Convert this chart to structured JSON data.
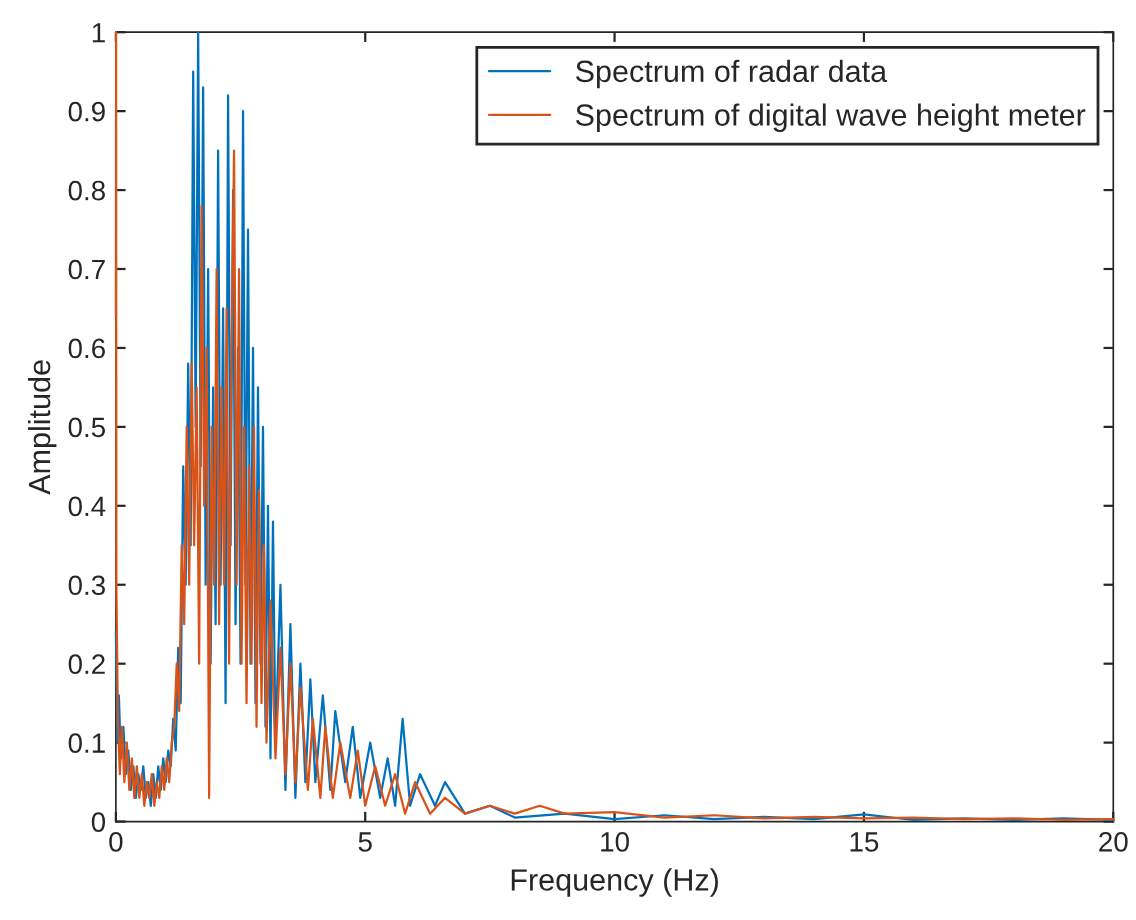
{
  "chart_data": {
    "type": "line",
    "xlabel": "Frequency (Hz)",
    "ylabel": "Amplitude",
    "xlim": [
      0,
      20
    ],
    "ylim": [
      0,
      1
    ],
    "xticks": [
      0,
      5,
      10,
      15,
      20
    ],
    "yticks": [
      0,
      0.1,
      0.2,
      0.3,
      0.4,
      0.5,
      0.6,
      0.7,
      0.8,
      0.9,
      1
    ],
    "grid": false,
    "legend": "top right",
    "series": [
      {
        "name": "Spectrum of radar data",
        "color": "#0072bd",
        "x": [
          0,
          0.03,
          0.06,
          0.1,
          0.15,
          0.2,
          0.25,
          0.3,
          0.35,
          0.4,
          0.45,
          0.5,
          0.55,
          0.6,
          0.65,
          0.7,
          0.75,
          0.8,
          0.85,
          0.9,
          0.95,
          1.0,
          1.05,
          1.1,
          1.15,
          1.2,
          1.25,
          1.3,
          1.35,
          1.4,
          1.45,
          1.5,
          1.55,
          1.6,
          1.65,
          1.7,
          1.75,
          1.8,
          1.85,
          1.9,
          1.95,
          2.0,
          2.05,
          2.1,
          2.15,
          2.2,
          2.25,
          2.3,
          2.35,
          2.4,
          2.45,
          2.5,
          2.55,
          2.6,
          2.65,
          2.7,
          2.75,
          2.8,
          2.85,
          2.9,
          2.95,
          3.0,
          3.05,
          3.1,
          3.15,
          3.2,
          3.3,
          3.4,
          3.5,
          3.6,
          3.7,
          3.8,
          3.9,
          4.0,
          4.15,
          4.3,
          4.4,
          4.6,
          4.75,
          4.9,
          5.1,
          5.3,
          5.45,
          5.6,
          5.75,
          5.9,
          6.1,
          6.4,
          6.6,
          7.0,
          7.5,
          8.0,
          9,
          10,
          11,
          12,
          13,
          14,
          15,
          16,
          17,
          18,
          19,
          20
        ],
        "values": [
          0.24,
          0.1,
          0.16,
          0.08,
          0.12,
          0.06,
          0.09,
          0.04,
          0.07,
          0.03,
          0.06,
          0.04,
          0.07,
          0.03,
          0.05,
          0.02,
          0.06,
          0.03,
          0.07,
          0.04,
          0.08,
          0.05,
          0.09,
          0.07,
          0.13,
          0.09,
          0.22,
          0.15,
          0.45,
          0.3,
          0.58,
          0.35,
          0.95,
          0.5,
          1.0,
          0.45,
          0.93,
          0.3,
          0.7,
          0.2,
          0.55,
          0.25,
          0.85,
          0.3,
          0.65,
          0.15,
          0.92,
          0.35,
          0.8,
          0.25,
          0.6,
          0.2,
          0.9,
          0.3,
          0.75,
          0.2,
          0.6,
          0.15,
          0.55,
          0.2,
          0.5,
          0.12,
          0.4,
          0.08,
          0.38,
          0.1,
          0.3,
          0.04,
          0.25,
          0.03,
          0.2,
          0.05,
          0.18,
          0.05,
          0.16,
          0.04,
          0.14,
          0.05,
          0.12,
          0.03,
          0.1,
          0.03,
          0.08,
          0.02,
          0.13,
          0.02,
          0.06,
          0.02,
          0.05,
          0.01,
          0.02,
          0.005,
          0.01,
          0.003,
          0.008,
          0.003,
          0.006,
          0.003,
          0.009,
          0.002,
          0.004,
          0.002,
          0.004,
          0.002
        ]
      },
      {
        "name": "Spectrum of digital wave height meter",
        "color": "#d95319",
        "x": [
          0,
          0.005,
          0.01,
          0.04,
          0.08,
          0.12,
          0.17,
          0.22,
          0.27,
          0.32,
          0.37,
          0.42,
          0.47,
          0.52,
          0.57,
          0.62,
          0.67,
          0.72,
          0.77,
          0.82,
          0.87,
          0.92,
          0.97,
          1.02,
          1.07,
          1.12,
          1.17,
          1.22,
          1.27,
          1.32,
          1.37,
          1.42,
          1.47,
          1.52,
          1.57,
          1.62,
          1.67,
          1.72,
          1.77,
          1.82,
          1.87,
          1.92,
          1.97,
          2.02,
          2.07,
          2.12,
          2.17,
          2.22,
          2.27,
          2.32,
          2.37,
          2.42,
          2.47,
          2.52,
          2.57,
          2.62,
          2.67,
          2.72,
          2.77,
          2.82,
          2.87,
          2.92,
          2.97,
          3.02,
          3.1,
          3.2,
          3.3,
          3.4,
          3.5,
          3.6,
          3.7,
          3.85,
          3.95,
          4.1,
          4.2,
          4.35,
          4.5,
          4.7,
          4.85,
          5.0,
          5.2,
          5.4,
          5.6,
          5.8,
          6.0,
          6.3,
          6.6,
          7.0,
          7.5,
          8,
          8.5,
          9,
          10,
          11,
          12,
          13,
          14,
          15,
          16,
          17,
          18,
          19,
          20
        ],
        "values": [
          0.64,
          1.0,
          0.3,
          0.13,
          0.06,
          0.12,
          0.05,
          0.1,
          0.04,
          0.08,
          0.03,
          0.07,
          0.03,
          0.06,
          0.02,
          0.05,
          0.03,
          0.06,
          0.02,
          0.05,
          0.03,
          0.07,
          0.04,
          0.08,
          0.05,
          0.1,
          0.12,
          0.2,
          0.14,
          0.35,
          0.25,
          0.5,
          0.3,
          0.58,
          0.35,
          0.55,
          0.2,
          0.78,
          0.4,
          0.6,
          0.03,
          0.5,
          0.3,
          0.7,
          0.25,
          0.55,
          0.3,
          0.65,
          0.2,
          0.6,
          0.85,
          0.3,
          0.7,
          0.2,
          0.5,
          0.15,
          0.45,
          0.2,
          0.5,
          0.12,
          0.42,
          0.15,
          0.35,
          0.1,
          0.28,
          0.08,
          0.22,
          0.06,
          0.2,
          0.05,
          0.17,
          0.04,
          0.13,
          0.03,
          0.12,
          0.03,
          0.1,
          0.03,
          0.09,
          0.02,
          0.07,
          0.02,
          0.06,
          0.01,
          0.05,
          0.01,
          0.03,
          0.01,
          0.02,
          0.01,
          0.02,
          0.01,
          0.012,
          0.005,
          0.008,
          0.004,
          0.006,
          0.004,
          0.005,
          0.003,
          0.004,
          0.002,
          0.003
        ]
      }
    ]
  }
}
